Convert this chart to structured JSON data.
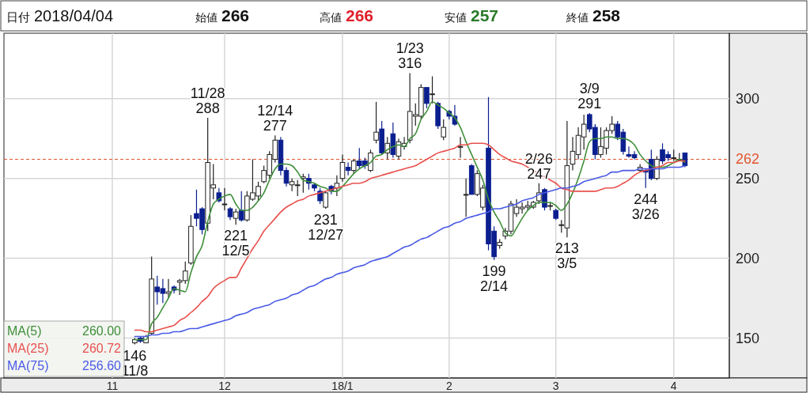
{
  "chart_data": {
    "type": "candlestick",
    "categories": [
      "11",
      null,
      null,
      null,
      null,
      null,
      null,
      null,
      null,
      null,
      null,
      null,
      null,
      null,
      null,
      null,
      null,
      null,
      null,
      null,
      "12",
      null,
      null,
      null,
      null,
      null,
      null,
      null,
      null,
      null,
      null,
      null,
      null,
      null,
      null,
      null,
      null,
      null,
      null,
      null,
      null,
      "18/1",
      null,
      null,
      null,
      null,
      null,
      null,
      null,
      null,
      null,
      null,
      null,
      null,
      null,
      null,
      null,
      null,
      null,
      null,
      "2",
      null,
      null,
      null,
      null,
      null,
      null,
      null,
      null,
      null,
      null,
      null,
      null,
      null,
      null,
      null,
      null,
      null,
      null,
      "3",
      null,
      null,
      null,
      null,
      null,
      null,
      null,
      null,
      null,
      null,
      null,
      null,
      null,
      null,
      null,
      null,
      null,
      null,
      null,
      null,
      "4",
      null,
      null
    ],
    "ohlc": [
      null,
      null,
      null,
      null,
      [
        147,
        150,
        146,
        149
      ],
      [
        150,
        151,
        147,
        148
      ],
      [
        147,
        152,
        147,
        151
      ],
      [
        153,
        201,
        152,
        187
      ],
      [
        182,
        189,
        171,
        179
      ],
      [
        181,
        187,
        172,
        178
      ],
      [
        178,
        187,
        175,
        179
      ],
      [
        182,
        183,
        178,
        180
      ],
      [
        185,
        187,
        177,
        186
      ],
      [
        186,
        198,
        184,
        192
      ],
      [
        197,
        227,
        196,
        220
      ],
      [
        228,
        243,
        220,
        225
      ],
      [
        231,
        232,
        215,
        218
      ],
      [
        222,
        288,
        217,
        260
      ],
      [
        244,
        259,
        237,
        246
      ],
      [
        241,
        244,
        235,
        236
      ],
      [
        234,
        244,
        230,
        234
      ],
      [
        231,
        232,
        224,
        226
      ],
      [
        225,
        231,
        221,
        229
      ],
      [
        230,
        242,
        223,
        224
      ],
      [
        224,
        242,
        223,
        239
      ],
      [
        237,
        262,
        236,
        241
      ],
      [
        239,
        248,
        236,
        245
      ],
      [
        248,
        258,
        247,
        255
      ],
      [
        252,
        267,
        250,
        265
      ],
      [
        262,
        277,
        260,
        274
      ],
      [
        274,
        276,
        252,
        255
      ],
      [
        255,
        257,
        245,
        247
      ],
      [
        246,
        250,
        242,
        248
      ],
      [
        246,
        249,
        239,
        246
      ],
      [
        250,
        253,
        241,
        251
      ],
      [
        250,
        253,
        243,
        247
      ],
      [
        246,
        247,
        242,
        244
      ],
      [
        242,
        244,
        234,
        236
      ],
      [
        232,
        242,
        231,
        241
      ],
      [
        245,
        246,
        240,
        242
      ],
      [
        244,
        252,
        239,
        247
      ],
      [
        250,
        265,
        248,
        260
      ],
      [
        257,
        260,
        252,
        255
      ],
      [
        255,
        262,
        253,
        261
      ],
      [
        261,
        269,
        256,
        258
      ],
      [
        261,
        263,
        256,
        258
      ],
      [
        255,
        268,
        254,
        266
      ],
      [
        274,
        298,
        272,
        279
      ],
      [
        281,
        286,
        265,
        266
      ],
      [
        266,
        276,
        262,
        272
      ],
      [
        278,
        285,
        263,
        265
      ],
      [
        264,
        275,
        262,
        273
      ],
      [
        270,
        276,
        268,
        272
      ],
      [
        274,
        316,
        272,
        292
      ],
      [
        289,
        297,
        283,
        290
      ],
      [
        289,
        309,
        287,
        307
      ],
      [
        307,
        307,
        294,
        297
      ],
      [
        303,
        314,
        297,
        303
      ],
      [
        297,
        298,
        281,
        283
      ],
      [
        276,
        287,
        274,
        282
      ],
      [
        292,
        293,
        287,
        289
      ],
      [
        289,
        296,
        283,
        284
      ],
      [
        270,
        276,
        263,
        270
      ],
      [
        240,
        250,
        226,
        240
      ],
      [
        258,
        259,
        240,
        240
      ],
      [
        240,
        255,
        239,
        253
      ],
      [
        232,
        246,
        230,
        244
      ],
      [
        269,
        301,
        205,
        209
      ],
      [
        217,
        220,
        199,
        201
      ],
      [
        208,
        212,
        206,
        210
      ],
      [
        214,
        219,
        212,
        217
      ],
      [
        217,
        236,
        215,
        234
      ],
      [
        228,
        237,
        226,
        232
      ],
      [
        231,
        235,
        228,
        232
      ],
      [
        232,
        236,
        230,
        233
      ],
      [
        232,
        236,
        231,
        235
      ],
      [
        236,
        247,
        234,
        241
      ],
      [
        243,
        244,
        230,
        232
      ],
      [
        233,
        235,
        230,
        233
      ],
      [
        230,
        231,
        224,
        225
      ],
      [
        221,
        224,
        216,
        221
      ],
      [
        219,
        286,
        213,
        258
      ],
      [
        259,
        276,
        255,
        267
      ],
      [
        265,
        282,
        262,
        277
      ],
      [
        276,
        290,
        268,
        284
      ],
      [
        290,
        291,
        279,
        281
      ],
      [
        282,
        284,
        262,
        265
      ],
      [
        265,
        282,
        263,
        270
      ],
      [
        269,
        282,
        265,
        280
      ],
      [
        280,
        289,
        278,
        284
      ],
      [
        284,
        286,
        274,
        276
      ],
      [
        279,
        281,
        265,
        267
      ],
      [
        265,
        270,
        263,
        264
      ],
      [
        265,
        267,
        262,
        263
      ],
      [
        255,
        259,
        254,
        257
      ],
      [
        255,
        256,
        244,
        254
      ],
      [
        262,
        268,
        249,
        250
      ],
      [
        250,
        264,
        249,
        262
      ],
      [
        268,
        272,
        259,
        261
      ],
      [
        265,
        267,
        261,
        263
      ],
      [
        263,
        268,
        261,
        263
      ],
      [
        262,
        266,
        261,
        262
      ],
      [
        266,
        266,
        257,
        258
      ]
    ],
    "colors": [
      null,
      null,
      null,
      null,
      "#ffffff",
      "#0b1f8f",
      "#ffffff",
      "#ffffff",
      "#0b1f8f",
      "#0b1f8f",
      "#ffffff",
      "#0b1f8f",
      "#ffffff",
      "#ffffff",
      "#ffffff",
      "#0b1f8f",
      "#0b1f8f",
      "#ffffff",
      "#ffffff",
      "#0b1f8f",
      "#ffffff",
      "#0b1f8f",
      "#ffffff",
      "#0b1f8f",
      "#ffffff",
      "#ffffff",
      "#ffffff",
      "#ffffff",
      "#ffffff",
      "#ffffff",
      "#0b1f8f",
      "#0b1f8f",
      "#ffffff",
      "#ffffff",
      "#ffffff",
      "#0b1f8f",
      "#0b1f8f",
      "#0b1f8f",
      "#ffffff",
      "#0b1f8f",
      "#ffffff",
      "#ffffff",
      "#0b1f8f",
      "#ffffff",
      "#0b1f8f",
      "#0b1f8f",
      "#ffffff",
      "#ffffff",
      "#0b1f8f",
      "#ffffff",
      "#0b1f8f",
      "#ffffff",
      "#ffffff",
      "#ffffff",
      "#ffffff",
      "#ffffff",
      "#0b1f8f",
      "#ffffff",
      "#0b1f8f",
      "#ffffff",
      "#0b1f8f",
      "#0b1f8f",
      "#ffffff",
      "#ffffff",
      "#0b1f8f",
      "#ffffff",
      "#ffffff",
      "#0b1f8f",
      "#0b1f8f",
      "#ffffff",
      "#ffffff",
      "#ffffff",
      "#ffffff",
      "#ffffff",
      "#ffffff",
      "#ffffff",
      "#ffffff",
      "#0b1f8f",
      "#ffffff",
      "#0b1f8f",
      "#ffffff",
      "#ffffff",
      "#ffffff",
      "#ffffff",
      "#ffffff",
      "#0b1f8f",
      "#0b1f8f",
      "#ffffff",
      "#ffffff",
      "#ffffff",
      "#0b1f8f",
      "#0b1f8f",
      "#0b1f8f",
      "#0b1f8f",
      "#ffffff",
      "#0b1f8f",
      "#0b1f8f",
      "#ffffff",
      "#0b1f8f",
      "#0b1f8f",
      "#ffffff",
      "#ffffff",
      "#0b1f8f"
    ],
    "series": [
      {
        "type": "line",
        "name": "MA(5)",
        "color": "#3f8f3a",
        "values": [
          null,
          null,
          null,
          null,
          149,
          149,
          149,
          159,
          163,
          169,
          175,
          181,
          180,
          179,
          191,
          201,
          208,
          223,
          234,
          237,
          239,
          240,
          234,
          230,
          230,
          232,
          236,
          241,
          249,
          256,
          259,
          259,
          258,
          254,
          249,
          248,
          247,
          245,
          244,
          242,
          242,
          245,
          249,
          253,
          256,
          258,
          260,
          264,
          265,
          268,
          270,
          271,
          270,
          275,
          278,
          287,
          292,
          298,
          296,
          294,
          291,
          288,
          282,
          273,
          265,
          257,
          249,
          237,
          229,
          223,
          216,
          214,
          219,
          225,
          230,
          233,
          235,
          235,
          235,
          233,
          230,
          234,
          241,
          250,
          261,
          273,
          275,
          275,
          276,
          276,
          275,
          275,
          274,
          271,
          265,
          261,
          258,
          257,
          257,
          258,
          260,
          262,
          260
        ]
      },
      {
        "type": "line",
        "name": "MA(25)",
        "color": "#e8504e",
        "values": [
          null,
          null,
          null,
          null,
          155,
          155,
          154,
          154,
          155,
          156,
          157,
          158,
          161,
          163,
          166,
          169,
          173,
          176,
          181,
          184,
          186,
          188,
          188,
          194,
          200,
          206,
          211,
          217,
          221,
          225,
          229,
          232,
          234,
          236,
          237,
          239,
          240,
          241,
          242,
          243,
          244,
          245,
          246,
          247,
          247,
          248,
          250,
          251,
          252,
          253,
          254,
          255,
          256,
          257,
          258,
          260,
          262,
          264,
          266,
          267,
          268,
          269,
          271,
          271,
          272,
          272,
          272,
          271,
          268,
          265,
          263,
          261,
          260,
          259,
          257,
          255,
          253,
          251,
          249,
          247,
          244,
          243,
          242,
          242,
          242,
          242,
          242,
          243,
          244,
          244,
          245,
          247,
          249,
          252,
          254,
          255,
          256,
          257,
          258,
          260,
          260,
          261,
          261
        ]
      },
      {
        "type": "line",
        "name": "MA(75)",
        "color": "#4a5ae6",
        "values": [
          null,
          null,
          null,
          null,
          151,
          151,
          151,
          152,
          152,
          153,
          153,
          154,
          154,
          155,
          156,
          156,
          157,
          158,
          159,
          160,
          161,
          162,
          164,
          165,
          166,
          168,
          169,
          170,
          171,
          173,
          174,
          175,
          177,
          178,
          180,
          182,
          183,
          185,
          187,
          188,
          190,
          191,
          192,
          194,
          195,
          196,
          198,
          199,
          200,
          201,
          203,
          205,
          207,
          208,
          210,
          212,
          213,
          215,
          217,
          219,
          220,
          222,
          223,
          225,
          226,
          227,
          228,
          229,
          231,
          231,
          232,
          233,
          234,
          236,
          237,
          238,
          240,
          241,
          242,
          243,
          244,
          244,
          245,
          246,
          248,
          249,
          250,
          251,
          252,
          254,
          254,
          255,
          255,
          255,
          256,
          256,
          256,
          256,
          256,
          257,
          257,
          257,
          258
        ]
      }
    ],
    "ylim": [
      125,
      341
    ],
    "yticks": [
      150,
      200,
      250,
      300
    ],
    "grid": true,
    "legend": "bottom left",
    "ref_lines": [
      {
        "axis": "y",
        "value": 262,
        "label": "262",
        "color": "#e0552e",
        "line_style": "dashed"
      }
    ],
    "annotations": [
      "日付 2018/04/04",
      "始値 266",
      "高値 266",
      "安値 257",
      "終値 258",
      "260.00",
      "260.72",
      "256.60",
      {
        "text": "146\n11/8",
        "y": 146
      },
      {
        "text": "11/28\n288",
        "y": 288
      },
      {
        "text": "221\n12/5",
        "y": 221
      },
      {
        "text": "12/14\n277",
        "y": 277
      },
      {
        "text": "231\n12/27",
        "y": 231
      },
      {
        "text": "1/23\n316",
        "y": 316
      },
      {
        "text": "199\n2/14",
        "y": 199
      },
      {
        "text": "2/26\n247",
        "y": 247
      },
      {
        "text": "213\n3/5",
        "y": 213
      },
      {
        "text": "3/9\n291",
        "y": 291
      },
      {
        "text": "244\n3/26",
        "y": 244
      }
    ]
  }
}
